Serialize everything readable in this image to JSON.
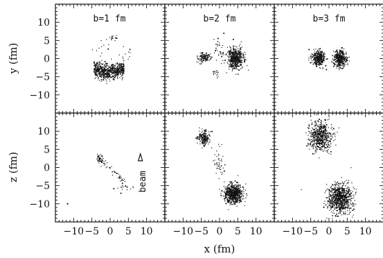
{
  "chart_data": {
    "type": "scatter",
    "xlabel": "x (fm)",
    "ylabels": [
      "y (fm)",
      "z (fm)"
    ],
    "xlim": [
      -15,
      15
    ],
    "ylim": [
      -15,
      15
    ],
    "x_tick_labels": [
      "−10",
      "−5",
      "0",
      "5",
      "10"
    ],
    "x_tick_values": [
      -10,
      -5,
      0,
      5,
      10
    ],
    "y_tick_labels": [
      "10",
      "5",
      "0",
      "−5",
      "−10"
    ],
    "y_tick_values": [
      10,
      5,
      0,
      -5,
      -10
    ],
    "column_labels": [
      "b=1 fm",
      "b=2 fm",
      "b=3 fm"
    ],
    "annotation": {
      "text": "beam",
      "panel": "z-b1",
      "x": 10.2,
      "y": -1.5
    },
    "arrow": {
      "panel": "z-b1",
      "x": 8.3,
      "y": 2.8
    },
    "panels": [
      {
        "id": "y-b1",
        "row": 0,
        "col": 0,
        "clusters": [
          {
            "cx": -0.3,
            "cy": -3.3,
            "sx": 3.6,
            "sy": 1.1,
            "n": 650,
            "shape": "arc"
          },
          {
            "cx": 1.0,
            "cy": 5.5,
            "sx": 0.9,
            "sy": 0.5,
            "n": 14
          },
          {
            "cx": -2.5,
            "cy": 2.5,
            "sx": 1.2,
            "sy": 1.2,
            "n": 10
          },
          {
            "cx": 4.7,
            "cy": 1.5,
            "sx": 0.6,
            "sy": 1.2,
            "n": 8
          }
        ]
      },
      {
        "id": "y-b2",
        "row": 0,
        "col": 1,
        "clusters": [
          {
            "cx": -4.3,
            "cy": 0.3,
            "sx": 0.9,
            "sy": 0.7,
            "n": 110
          },
          {
            "cx": 4.4,
            "cy": 0.0,
            "sx": 1.1,
            "sy": 1.4,
            "n": 480
          },
          {
            "cx": 0.0,
            "cy": 1.8,
            "sx": 0.9,
            "sy": 1.9,
            "n": 35
          },
          {
            "cx": -1.0,
            "cy": -3.5,
            "sx": 0.5,
            "sy": 0.8,
            "n": 14
          }
        ]
      },
      {
        "id": "y-b3",
        "row": 0,
        "col": 2,
        "clusters": [
          {
            "cx": -3.0,
            "cy": 0.0,
            "sx": 0.9,
            "sy": 1.0,
            "n": 300
          },
          {
            "cx": 3.1,
            "cy": 0.0,
            "sx": 0.9,
            "sy": 1.2,
            "n": 340
          }
        ]
      },
      {
        "id": "z-b1",
        "row": 1,
        "col": 0,
        "clusters": [
          {
            "cx": -2.8,
            "cy": 2.4,
            "sx": 0.5,
            "sy": 0.7,
            "n": 35
          },
          {
            "cx": 0.6,
            "cy": -0.8,
            "sx": 2.0,
            "sy": 1.8,
            "n": 45,
            "shape": "diag"
          },
          {
            "cx": 4.5,
            "cy": -5.8,
            "sx": 1.2,
            "sy": 0.7,
            "n": 14
          },
          {
            "cx": -11.5,
            "cy": -10.0,
            "sx": 0.2,
            "sy": 0.2,
            "n": 2
          }
        ]
      },
      {
        "id": "z-b2",
        "row": 1,
        "col": 1,
        "clusters": [
          {
            "cx": -4.3,
            "cy": 8.1,
            "sx": 0.9,
            "sy": 0.9,
            "n": 160
          },
          {
            "cx": -0.2,
            "cy": 1.0,
            "sx": 0.8,
            "sy": 2.4,
            "n": 45
          },
          {
            "cx": 3.9,
            "cy": -7.2,
            "sx": 1.3,
            "sy": 1.3,
            "n": 640
          }
        ]
      },
      {
        "id": "z-b3",
        "row": 1,
        "col": 2,
        "clusters": [
          {
            "cx": -2.2,
            "cy": 8.5,
            "sx": 1.5,
            "sy": 2.0,
            "n": 540
          },
          {
            "cx": 3.0,
            "cy": -8.6,
            "sx": 1.6,
            "sy": 2.0,
            "n": 780
          },
          {
            "cx": -7.5,
            "cy": -6.0,
            "sx": 0.1,
            "sy": 0.1,
            "n": 1
          }
        ]
      }
    ]
  }
}
